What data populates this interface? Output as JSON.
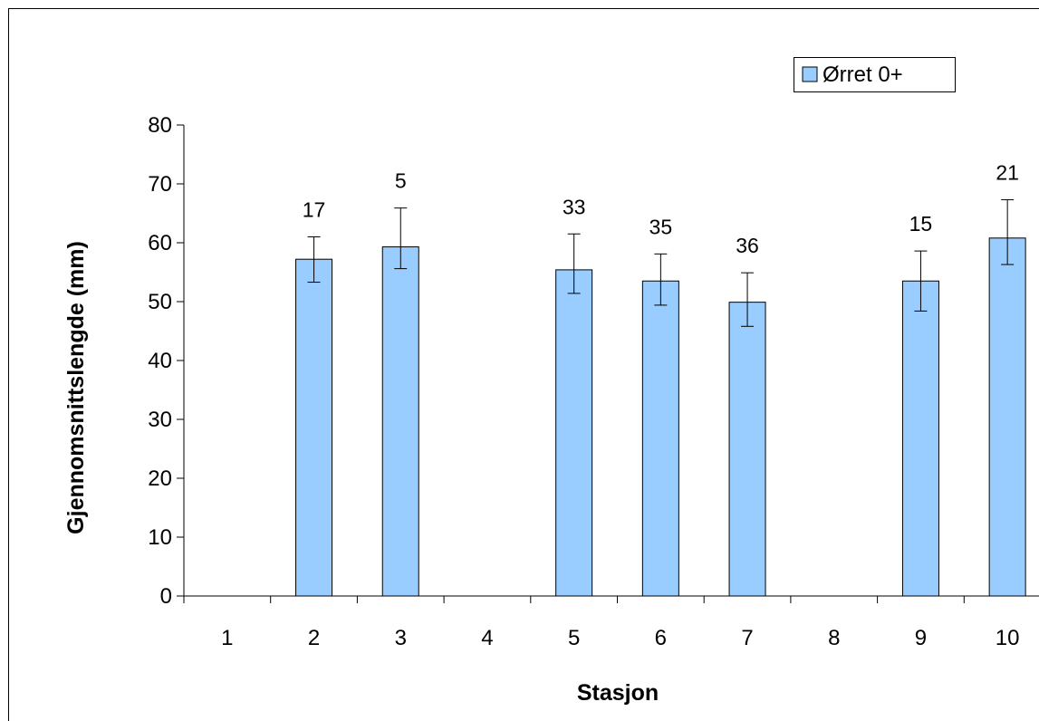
{
  "chart_data": {
    "type": "bar",
    "categories": [
      "1",
      "2",
      "3",
      "4",
      "5",
      "6",
      "7",
      "8",
      "9",
      "10"
    ],
    "series": [
      {
        "name": "Ørret 0+",
        "values": [
          null,
          57.2,
          59.3,
          null,
          55.4,
          53.5,
          49.9,
          null,
          53.5,
          60.8
        ],
        "error_low": [
          null,
          53.3,
          55.6,
          null,
          51.4,
          49.4,
          45.8,
          null,
          48.4,
          56.3
        ],
        "error_high": [
          null,
          61.0,
          65.9,
          null,
          61.5,
          58.1,
          54.9,
          null,
          58.6,
          67.3
        ],
        "counts": [
          null,
          "17",
          "5",
          null,
          "33",
          "35",
          "36",
          null,
          "15",
          "21"
        ]
      }
    ],
    "title": "",
    "xlabel": "Stasjon",
    "ylabel": "Gjennomsnittslengde (mm)",
    "ylim": [
      0,
      80
    ],
    "yticks": [
      0,
      10,
      20,
      30,
      40,
      50,
      60,
      70,
      80
    ],
    "grid": false,
    "legend_position": "top-right",
    "colors": {
      "bar_fill": "#99ccff",
      "bar_stroke": "#000000",
      "axis": "#000000"
    }
  }
}
